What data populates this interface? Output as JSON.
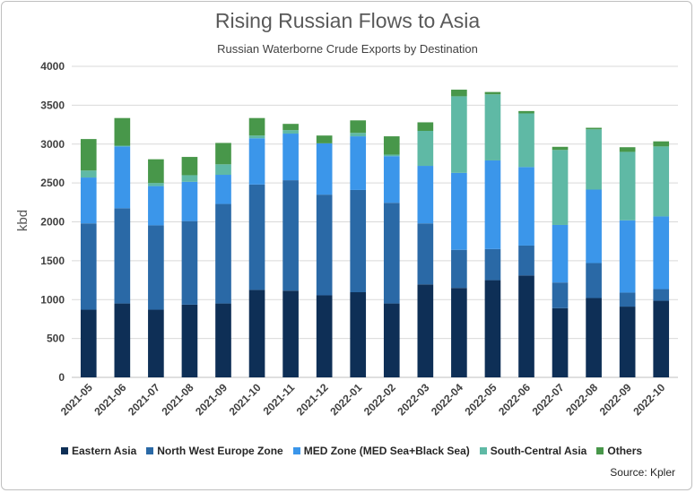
{
  "colors": {
    "Eastern Asia": "#0e2f56",
    "North West Europe Zone": "#2a69a6",
    "MED Zone (MED Sea+Black Sea)": "#3b96ea",
    "South-Central Asia": "#5fb9a5",
    "Others": "#48974a"
  },
  "source": "Source: Kpler",
  "chart_data": {
    "type": "bar",
    "stacked": true,
    "title": "Rising Russian Flows to Asia",
    "subtitle": "Russian Waterborne Crude Exports by Destination",
    "xlabel": "",
    "ylabel": "kbd",
    "ylim": [
      0,
      4000
    ],
    "yticks": [
      0,
      500,
      1000,
      1500,
      2000,
      2500,
      3000,
      3500,
      4000
    ],
    "grid": true,
    "legend_position": "bottom",
    "categories": [
      "2021-05",
      "2021-06",
      "2021-07",
      "2021-08",
      "2021-09",
      "2021-10",
      "2021-11",
      "2021-12",
      "2022-01",
      "2022-02",
      "2022-03",
      "2022-04",
      "2022-05",
      "2022-06",
      "2022-07",
      "2022-08",
      "2022-09",
      "2022-10"
    ],
    "series": [
      {
        "name": "Eastern Asia",
        "values": [
          870,
          950,
          870,
          935,
          950,
          1125,
          1115,
          1055,
          1095,
          950,
          1195,
          1150,
          1250,
          1310,
          890,
          1020,
          910,
          985
        ]
      },
      {
        "name": "North West Europe Zone",
        "values": [
          1110,
          1225,
          1085,
          1075,
          1280,
          1355,
          1420,
          1295,
          1315,
          1295,
          785,
          490,
          400,
          385,
          330,
          450,
          180,
          150
        ]
      },
      {
        "name": "MED Zone (MED Sea+Black Sea)",
        "values": [
          590,
          795,
          505,
          505,
          375,
          595,
          600,
          660,
          690,
          600,
          740,
          990,
          1140,
          1010,
          740,
          945,
          930,
          935
        ]
      },
      {
        "name": "South-Central Asia",
        "values": [
          90,
          10,
          40,
          85,
          135,
          35,
          45,
          0,
          45,
          20,
          450,
          985,
          850,
          690,
          965,
          775,
          880,
          900
        ]
      },
      {
        "name": "Others",
        "values": [
          405,
          355,
          305,
          235,
          275,
          225,
          80,
          100,
          160,
          235,
          110,
          85,
          30,
          30,
          40,
          20,
          60,
          65
        ]
      }
    ]
  }
}
